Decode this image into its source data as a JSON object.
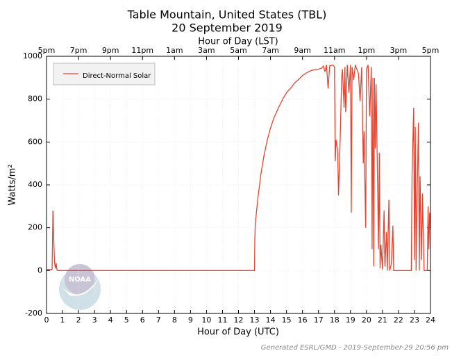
{
  "chart_data": {
    "type": "line",
    "title": "Table Mountain, United States (TBL)",
    "subtitle": "20 September 2019",
    "x_label": "Hour of Day (UTC)",
    "x2_label": "Hour of Day (LST)",
    "y_label": "Watts/m²",
    "footer": "Generated ESRL/GMD - 2019-September-29 20:56 pm",
    "logo_text": "NOAA",
    "legend": "upper left",
    "grid": true,
    "xlim": [
      0,
      24
    ],
    "ylim": [
      -200,
      1000
    ],
    "xticks": [
      0,
      1,
      2,
      3,
      4,
      5,
      6,
      7,
      8,
      9,
      10,
      11,
      12,
      13,
      14,
      15,
      16,
      17,
      18,
      19,
      20,
      21,
      22,
      23,
      24
    ],
    "x2ticks": [
      {
        "value": 0,
        "label": "5pm"
      },
      {
        "value": 2,
        "label": "7pm"
      },
      {
        "value": 4,
        "label": "9pm"
      },
      {
        "value": 6,
        "label": "11pm"
      },
      {
        "value": 8,
        "label": "1am"
      },
      {
        "value": 10,
        "label": "3am"
      },
      {
        "value": 12,
        "label": "5am"
      },
      {
        "value": 14,
        "label": "7am"
      },
      {
        "value": 16,
        "label": "9am"
      },
      {
        "value": 18,
        "label": "11am"
      },
      {
        "value": 20,
        "label": "1pm"
      },
      {
        "value": 22,
        "label": "3pm"
      },
      {
        "value": 24,
        "label": "5pm"
      }
    ],
    "yticks": [
      -200,
      0,
      200,
      400,
      600,
      800,
      1000
    ],
    "x": [
      0,
      0.35,
      0.4,
      0.45,
      0.5,
      0.55,
      0.6,
      0.65,
      0.7,
      13.0,
      13.02,
      13.05,
      13.2,
      13.4,
      13.6,
      13.8,
      14.0,
      14.2,
      14.5,
      14.8,
      15.0,
      15.3,
      15.5,
      15.8,
      16.0,
      16.3,
      16.6,
      17.0,
      17.2,
      17.3,
      17.4,
      17.5,
      17.6,
      17.7,
      17.9,
      18.0,
      18.05,
      18.1,
      18.2,
      18.25,
      18.35,
      18.45,
      18.5,
      18.6,
      18.65,
      18.7,
      18.8,
      18.9,
      19.0,
      19.05,
      19.1,
      19.2,
      19.3,
      19.4,
      19.5,
      19.6,
      19.7,
      19.8,
      19.85,
      19.9,
      19.95,
      20.0,
      20.1,
      20.2,
      20.3,
      20.35,
      20.4,
      20.45,
      20.5,
      20.55,
      20.6,
      20.7,
      20.75,
      20.8,
      20.85,
      20.9,
      21.0,
      21.1,
      21.15,
      21.25,
      21.3,
      21.4,
      21.45,
      21.55,
      21.65,
      21.7,
      22.8,
      22.85,
      22.95,
      23.0,
      23.05,
      23.1,
      23.15,
      23.25,
      23.3,
      23.35,
      23.45,
      23.5,
      23.6,
      23.8,
      23.85,
      23.9,
      23.95,
      24.0
    ],
    "series": [
      {
        "name": "Direct-Normal Solar",
        "color": "#e8432f",
        "values": [
          5,
          5,
          280,
          150,
          40,
          10,
          35,
          5,
          0,
          0,
          140,
          220,
          330,
          450,
          540,
          610,
          665,
          710,
          760,
          805,
          830,
          855,
          875,
          895,
          910,
          925,
          935,
          940,
          945,
          955,
          930,
          960,
          850,
          955,
          960,
          950,
          510,
          610,
          560,
          350,
          600,
          900,
          940,
          760,
          950,
          740,
          960,
          830,
          960,
          270,
          950,
          890,
          960,
          940,
          920,
          790,
          950,
          500,
          650,
          410,
          200,
          940,
          960,
          720,
          950,
          100,
          900,
          20,
          900,
          570,
          870,
          380,
          100,
          550,
          10,
          120,
          5,
          280,
          20,
          180,
          0,
          330,
          0,
          30,
          210,
          0,
          0,
          450,
          760,
          50,
          670,
          0,
          300,
          690,
          0,
          440,
          50,
          360,
          0,
          0,
          300,
          100,
          270,
          200
        ]
      }
    ]
  }
}
